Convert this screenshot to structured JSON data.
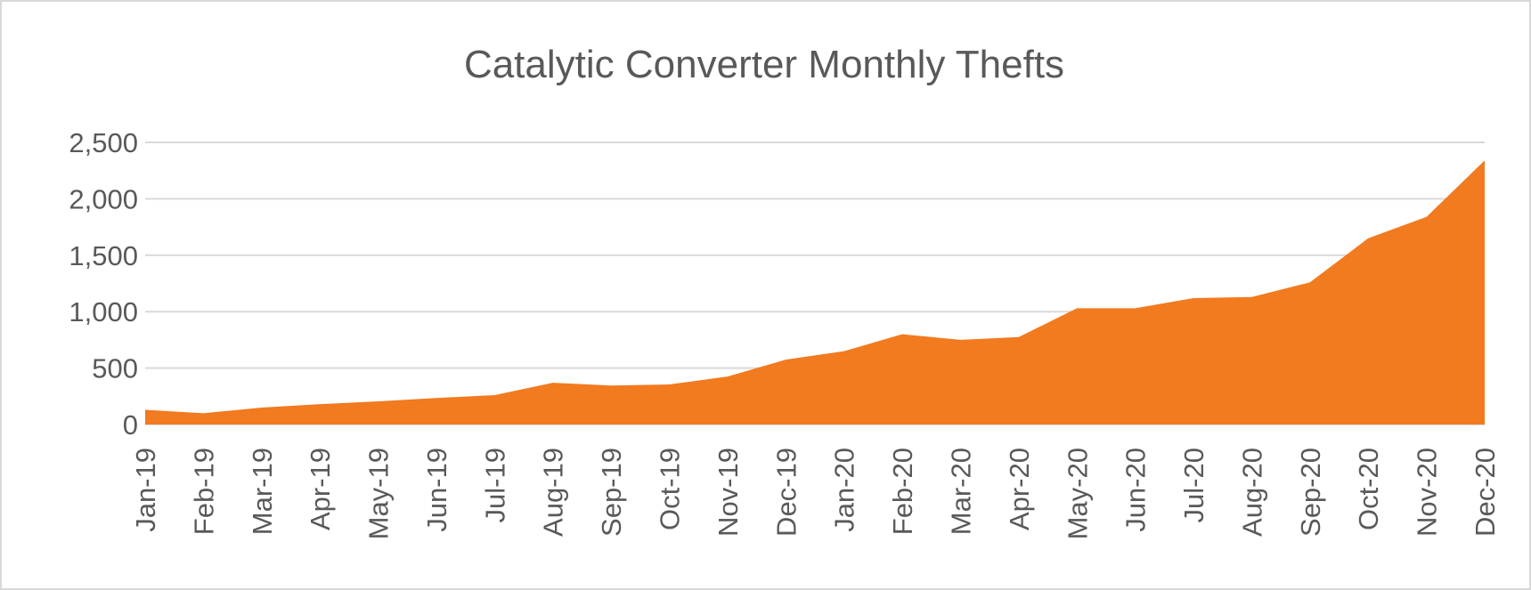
{
  "chart_data": {
    "type": "area",
    "title": "Catalytic Converter Monthly Thefts",
    "xlabel": "",
    "ylabel": "",
    "categories": [
      "Jan-19",
      "Feb-19",
      "Mar-19",
      "Apr-19",
      "May-19",
      "Jun-19",
      "Jul-19",
      "Aug-19",
      "Sep-19",
      "Oct-19",
      "Nov-19",
      "Dec-19",
      "Jan-20",
      "Feb-20",
      "Mar-20",
      "Apr-20",
      "May-20",
      "Jun-20",
      "Jul-20",
      "Aug-20",
      "Sep-20",
      "Oct-20",
      "Nov-20",
      "Dec-20"
    ],
    "values": [
      130,
      100,
      150,
      180,
      205,
      235,
      260,
      370,
      345,
      355,
      425,
      575,
      650,
      800,
      750,
      775,
      1030,
      1030,
      1120,
      1130,
      1260,
      1650,
      1840,
      2340
    ],
    "ylim": [
      0,
      2500
    ],
    "yticks": [
      0,
      500,
      1000,
      1500,
      2000,
      2500
    ],
    "ytick_labels": [
      "0",
      "500",
      "1,000",
      "1,500",
      "2,000",
      "2,500"
    ],
    "grid": true,
    "legend": "none",
    "colors": {
      "area": "#F27A1F",
      "grid": "#d9d9d9",
      "text": "#595959"
    }
  }
}
